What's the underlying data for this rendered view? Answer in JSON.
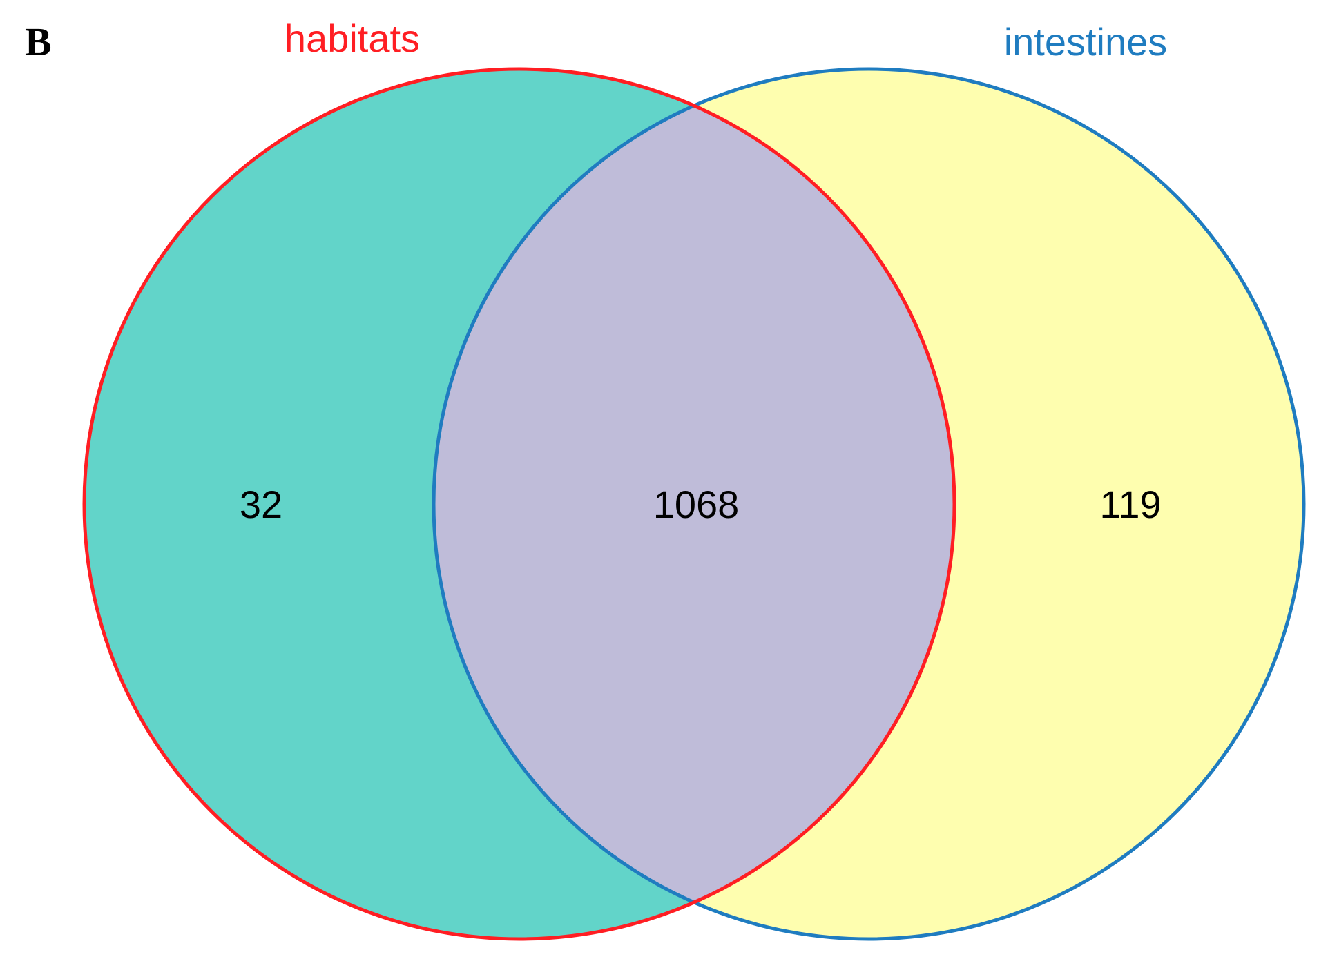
{
  "panel_label": "B",
  "sets": [
    {
      "id": "habitats",
      "label": "habitats",
      "fill": "#62d4c9",
      "stroke": "#ff1e23"
    },
    {
      "id": "intestines",
      "label": "intestines",
      "fill": "#fefeaf",
      "stroke": "#1f7cc0"
    }
  ],
  "overlap_fill": "#bfbcd9",
  "counts": {
    "habitats_only": "32",
    "intersection": "1068",
    "intestines_only": "119"
  }
}
